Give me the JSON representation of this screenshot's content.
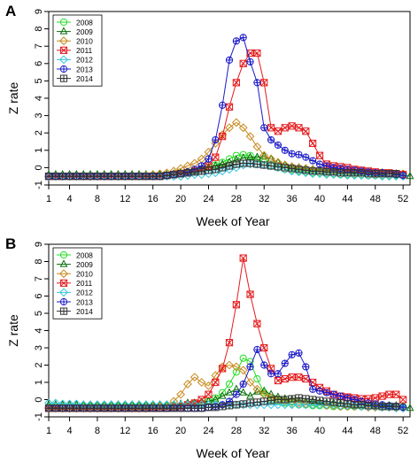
{
  "chart_data": [
    {
      "panel_label": "A",
      "type": "line",
      "xlabel": "Week of Year",
      "ylabel": "Z rate",
      "xlim": [
        1,
        53
      ],
      "ylim": [
        -1,
        9
      ],
      "xticks": [
        1,
        4,
        8,
        12,
        16,
        20,
        24,
        28,
        32,
        36,
        40,
        44,
        48,
        52
      ],
      "yticks": [
        -1,
        0,
        1,
        2,
        3,
        4,
        5,
        6,
        7,
        8,
        9
      ],
      "legend": "top-left",
      "x": [
        1,
        2,
        3,
        4,
        5,
        6,
        7,
        8,
        9,
        10,
        11,
        12,
        13,
        14,
        15,
        16,
        17,
        18,
        19,
        20,
        21,
        22,
        23,
        24,
        25,
        26,
        27,
        28,
        29,
        30,
        31,
        32,
        33,
        34,
        35,
        36,
        37,
        38,
        39,
        40,
        41,
        42,
        43,
        44,
        45,
        46,
        47,
        48,
        49,
        50,
        51,
        52,
        53
      ],
      "series": [
        {
          "name": "2008",
          "color": "#22dd22",
          "marker": "circle",
          "values": [
            -0.5,
            -0.5,
            -0.5,
            -0.5,
            -0.5,
            -0.5,
            -0.5,
            -0.5,
            -0.5,
            -0.5,
            -0.5,
            -0.5,
            -0.5,
            -0.5,
            -0.5,
            -0.5,
            -0.5,
            -0.45,
            -0.4,
            -0.35,
            -0.3,
            -0.2,
            -0.1,
            0.0,
            0.15,
            0.3,
            0.5,
            0.7,
            0.75,
            0.7,
            0.5,
            0.3,
            0.1,
            0.0,
            -0.1,
            -0.15,
            -0.2,
            -0.25,
            -0.3,
            -0.3,
            -0.35,
            -0.35,
            -0.4,
            -0.4,
            -0.4,
            -0.4,
            -0.45,
            -0.45,
            -0.45,
            -0.45,
            -0.45,
            -0.45,
            null
          ]
        },
        {
          "name": "2009",
          "color": "#0a6e0a",
          "marker": "triangle",
          "values": [
            -0.4,
            -0.4,
            -0.4,
            -0.4,
            -0.4,
            -0.4,
            -0.4,
            -0.4,
            -0.4,
            -0.4,
            -0.4,
            -0.4,
            -0.4,
            -0.4,
            -0.4,
            -0.4,
            -0.4,
            -0.4,
            -0.35,
            -0.3,
            -0.25,
            -0.2,
            -0.1,
            0.0,
            0.1,
            0.2,
            0.3,
            0.45,
            0.55,
            0.6,
            0.6,
            0.65,
            0.5,
            0.3,
            0.15,
            0.05,
            0.0,
            -0.05,
            -0.1,
            -0.15,
            -0.15,
            -0.2,
            -0.2,
            -0.25,
            -0.25,
            -0.3,
            -0.3,
            -0.3,
            -0.3,
            -0.35,
            -0.35,
            -0.4,
            -0.5
          ]
        },
        {
          "name": "2010",
          "color": "#c8881a",
          "marker": "diamond",
          "values": [
            -0.5,
            -0.5,
            -0.5,
            -0.5,
            -0.5,
            -0.5,
            -0.5,
            -0.5,
            -0.5,
            -0.5,
            -0.5,
            -0.5,
            -0.5,
            -0.5,
            -0.45,
            -0.4,
            -0.35,
            -0.3,
            -0.2,
            -0.05,
            0.1,
            0.25,
            0.5,
            0.9,
            1.4,
            1.9,
            2.3,
            2.6,
            2.3,
            1.8,
            1.2,
            0.7,
            0.5,
            0.3,
            0.15,
            0.05,
            0.0,
            -0.05,
            -0.1,
            -0.15,
            -0.2,
            -0.2,
            -0.25,
            -0.25,
            -0.3,
            -0.3,
            -0.3,
            -0.35,
            -0.35,
            -0.35,
            -0.35,
            -0.35,
            null
          ]
        },
        {
          "name": "2011",
          "color": "#e41a1c",
          "marker": "boxx",
          "values": [
            -0.5,
            -0.5,
            -0.5,
            -0.5,
            -0.5,
            -0.5,
            -0.5,
            -0.5,
            -0.5,
            -0.5,
            -0.5,
            -0.5,
            -0.5,
            -0.5,
            -0.5,
            -0.5,
            -0.5,
            -0.45,
            -0.4,
            -0.35,
            -0.3,
            -0.2,
            -0.1,
            0.1,
            0.6,
            1.8,
            3.5,
            4.9,
            6.0,
            6.6,
            6.6,
            4.9,
            2.3,
            2.1,
            2.3,
            2.4,
            2.3,
            2.1,
            1.4,
            0.7,
            0.2,
            0.1,
            0.05,
            0.0,
            -0.1,
            -0.15,
            -0.2,
            -0.25,
            -0.3,
            -0.3,
            -0.35,
            -0.4,
            null
          ]
        },
        {
          "name": "2012",
          "color": "#33c4e0",
          "marker": "diamond",
          "values": [
            -0.5,
            -0.5,
            -0.5,
            -0.5,
            -0.5,
            -0.5,
            -0.5,
            -0.5,
            -0.5,
            -0.5,
            -0.5,
            -0.5,
            -0.5,
            -0.5,
            -0.5,
            -0.5,
            -0.5,
            -0.5,
            -0.5,
            -0.5,
            -0.45,
            -0.4,
            -0.4,
            -0.35,
            -0.3,
            -0.2,
            -0.1,
            0.0,
            0.15,
            0.2,
            0.2,
            0.15,
            0.1,
            0.0,
            -0.1,
            -0.2,
            -0.25,
            -0.3,
            -0.35,
            -0.35,
            -0.4,
            -0.4,
            -0.4,
            -0.45,
            -0.45,
            -0.45,
            -0.45,
            -0.45,
            -0.5,
            -0.5,
            -0.5,
            -0.5,
            null
          ]
        },
        {
          "name": "2013",
          "color": "#1a1ac8",
          "marker": "crosscircle",
          "values": [
            -0.5,
            -0.5,
            -0.5,
            -0.5,
            -0.5,
            -0.5,
            -0.5,
            -0.5,
            -0.5,
            -0.5,
            -0.5,
            -0.5,
            -0.5,
            -0.5,
            -0.5,
            -0.5,
            -0.5,
            -0.45,
            -0.4,
            -0.35,
            -0.25,
            -0.1,
            0.1,
            0.5,
            1.6,
            3.6,
            6.2,
            7.3,
            7.5,
            6.1,
            4.9,
            2.3,
            1.6,
            1.3,
            1.0,
            0.8,
            0.75,
            0.6,
            0.4,
            0.2,
            0.1,
            0.0,
            -0.05,
            -0.1,
            -0.15,
            -0.2,
            -0.25,
            -0.3,
            -0.3,
            -0.35,
            -0.4,
            -0.45,
            null
          ]
        },
        {
          "name": "2014",
          "color": "#333333",
          "marker": "boxplus",
          "values": [
            -0.5,
            -0.5,
            -0.5,
            -0.5,
            -0.5,
            -0.5,
            -0.5,
            -0.5,
            -0.5,
            -0.5,
            -0.5,
            -0.5,
            -0.5,
            -0.5,
            -0.5,
            -0.5,
            -0.5,
            -0.45,
            -0.4,
            -0.35,
            -0.3,
            -0.25,
            -0.2,
            -0.15,
            -0.1,
            0.0,
            0.1,
            0.2,
            0.25,
            0.25,
            0.2,
            0.15,
            0.1,
            0.05,
            0.0,
            -0.05,
            -0.1,
            -0.15,
            -0.2,
            -0.2,
            -0.25,
            -0.25,
            -0.3,
            -0.3,
            -0.3,
            -0.3,
            -0.35,
            -0.35,
            -0.35,
            -0.35,
            -0.35,
            null,
            null
          ]
        }
      ]
    },
    {
      "panel_label": "B",
      "type": "line",
      "xlabel": "Week of Year",
      "ylabel": "Z rate",
      "xlim": [
        1,
        53
      ],
      "ylim": [
        -1,
        9
      ],
      "xticks": [
        1,
        4,
        8,
        12,
        16,
        20,
        24,
        28,
        32,
        36,
        40,
        44,
        48,
        52
      ],
      "yticks": [
        -1,
        0,
        1,
        2,
        3,
        4,
        5,
        6,
        7,
        8,
        9
      ],
      "legend": "top-left",
      "x": [
        1,
        2,
        3,
        4,
        5,
        6,
        7,
        8,
        9,
        10,
        11,
        12,
        13,
        14,
        15,
        16,
        17,
        18,
        19,
        20,
        21,
        22,
        23,
        24,
        25,
        26,
        27,
        28,
        29,
        30,
        31,
        32,
        33,
        34,
        35,
        36,
        37,
        38,
        39,
        40,
        41,
        42,
        43,
        44,
        45,
        46,
        47,
        48,
        49,
        50,
        51,
        52,
        53
      ],
      "series": [
        {
          "name": "2008",
          "color": "#22dd22",
          "marker": "circle",
          "values": [
            -0.4,
            -0.4,
            -0.4,
            -0.4,
            -0.4,
            -0.4,
            -0.4,
            -0.4,
            -0.4,
            -0.4,
            -0.4,
            -0.4,
            -0.4,
            -0.4,
            -0.4,
            -0.4,
            -0.4,
            -0.4,
            -0.4,
            -0.35,
            -0.3,
            -0.25,
            -0.2,
            -0.1,
            0.1,
            0.4,
            0.9,
            1.6,
            2.4,
            2.2,
            1.2,
            0.4,
            0.0,
            -0.1,
            -0.2,
            -0.25,
            -0.3,
            -0.3,
            -0.35,
            -0.35,
            -0.35,
            -0.4,
            -0.4,
            -0.4,
            -0.4,
            -0.4,
            -0.4,
            -0.4,
            -0.4,
            -0.4,
            -0.4,
            -0.4,
            null
          ]
        },
        {
          "name": "2009",
          "color": "#0a6e0a",
          "marker": "triangle",
          "values": [
            -0.3,
            -0.3,
            -0.3,
            -0.3,
            -0.3,
            -0.3,
            -0.3,
            -0.3,
            -0.3,
            -0.3,
            -0.3,
            -0.3,
            -0.3,
            -0.3,
            -0.3,
            -0.3,
            -0.3,
            -0.3,
            -0.3,
            -0.25,
            -0.2,
            -0.2,
            -0.15,
            -0.1,
            0.0,
            0.2,
            0.4,
            0.6,
            0.4,
            0.2,
            0.45,
            0.5,
            0.3,
            0.15,
            0.05,
            0.0,
            -0.05,
            -0.1,
            -0.1,
            -0.15,
            -0.2,
            -0.2,
            -0.25,
            -0.25,
            -0.3,
            -0.3,
            -0.3,
            -0.35,
            -0.35,
            -0.35,
            -0.35,
            -0.4,
            -0.5
          ]
        },
        {
          "name": "2010",
          "color": "#c8881a",
          "marker": "diamond",
          "values": [
            -0.5,
            -0.5,
            -0.5,
            -0.5,
            -0.5,
            -0.5,
            -0.5,
            -0.5,
            -0.5,
            -0.5,
            -0.5,
            -0.5,
            -0.5,
            -0.5,
            -0.5,
            -0.45,
            -0.4,
            -0.3,
            -0.1,
            0.3,
            0.9,
            1.3,
            1.0,
            0.8,
            1.4,
            1.9,
            2.0,
            1.9,
            1.7,
            1.0,
            0.6,
            0.3,
            0.1,
            0.0,
            -0.1,
            -0.15,
            -0.2,
            -0.25,
            -0.3,
            -0.3,
            -0.35,
            -0.35,
            -0.4,
            -0.4,
            -0.4,
            -0.4,
            -0.45,
            -0.45,
            -0.45,
            -0.45,
            -0.45,
            -0.45,
            null
          ]
        },
        {
          "name": "2011",
          "color": "#e41a1c",
          "marker": "boxx",
          "values": [
            -0.5,
            -0.5,
            -0.5,
            -0.5,
            -0.5,
            -0.5,
            -0.5,
            -0.5,
            -0.5,
            -0.5,
            -0.5,
            -0.5,
            -0.5,
            -0.5,
            -0.5,
            -0.5,
            -0.5,
            -0.5,
            -0.45,
            -0.4,
            -0.3,
            -0.2,
            0.0,
            0.3,
            1.0,
            1.8,
            3.3,
            5.5,
            8.2,
            6.1,
            4.4,
            3.0,
            1.8,
            1.1,
            1.2,
            1.3,
            1.3,
            1.2,
            1.0,
            0.7,
            0.5,
            0.3,
            0.2,
            0.15,
            0.1,
            0.05,
            0.05,
            0.1,
            0.2,
            0.3,
            0.3,
            0.0,
            null
          ]
        },
        {
          "name": "2012",
          "color": "#33c4e0",
          "marker": "diamond",
          "values": [
            -0.2,
            -0.2,
            -0.25,
            -0.25,
            -0.25,
            -0.3,
            -0.3,
            -0.3,
            -0.3,
            -0.3,
            -0.3,
            -0.3,
            -0.3,
            -0.3,
            -0.3,
            -0.3,
            -0.3,
            -0.3,
            -0.3,
            -0.3,
            -0.3,
            -0.3,
            -0.3,
            -0.3,
            -0.3,
            -0.3,
            -0.3,
            -0.3,
            -0.3,
            -0.3,
            -0.3,
            -0.3,
            -0.3,
            -0.3,
            -0.3,
            -0.3,
            -0.3,
            -0.3,
            -0.3,
            -0.3,
            -0.3,
            -0.3,
            -0.35,
            -0.35,
            -0.35,
            -0.4,
            -0.4,
            -0.4,
            -0.45,
            -0.45,
            -0.5,
            -0.5,
            null
          ]
        },
        {
          "name": "2013",
          "color": "#1a1ac8",
          "marker": "crosscircle",
          "values": [
            -0.5,
            -0.5,
            -0.5,
            -0.5,
            -0.5,
            -0.5,
            -0.5,
            -0.5,
            -0.5,
            -0.5,
            -0.5,
            -0.5,
            -0.5,
            -0.5,
            -0.5,
            -0.5,
            -0.5,
            -0.5,
            -0.5,
            -0.5,
            -0.5,
            -0.5,
            -0.5,
            -0.45,
            -0.4,
            -0.3,
            -0.1,
            0.3,
            0.9,
            1.9,
            2.9,
            2.0,
            1.5,
            1.5,
            2.1,
            2.6,
            2.7,
            1.9,
            0.6,
            0.5,
            0.4,
            0.3,
            0.2,
            0.1,
            0.0,
            -0.1,
            -0.2,
            -0.25,
            -0.3,
            -0.35,
            -0.4,
            -0.45,
            null
          ]
        },
        {
          "name": "2014",
          "color": "#333333",
          "marker": "boxplus",
          "values": [
            -0.5,
            -0.5,
            -0.5,
            -0.5,
            -0.5,
            -0.5,
            -0.5,
            -0.5,
            -0.5,
            -0.5,
            -0.5,
            -0.5,
            -0.5,
            -0.5,
            -0.5,
            -0.5,
            -0.5,
            -0.5,
            -0.5,
            -0.5,
            -0.5,
            -0.5,
            -0.5,
            -0.45,
            -0.45,
            -0.4,
            -0.35,
            -0.3,
            -0.25,
            -0.2,
            -0.15,
            -0.1,
            -0.05,
            0.0,
            0.0,
            0.05,
            0.1,
            0.05,
            0.0,
            -0.05,
            -0.1,
            -0.15,
            -0.2,
            -0.25,
            -0.3,
            -0.3,
            -0.35,
            -0.35,
            -0.4,
            -0.4,
            -0.4,
            null,
            null
          ]
        }
      ]
    }
  ]
}
